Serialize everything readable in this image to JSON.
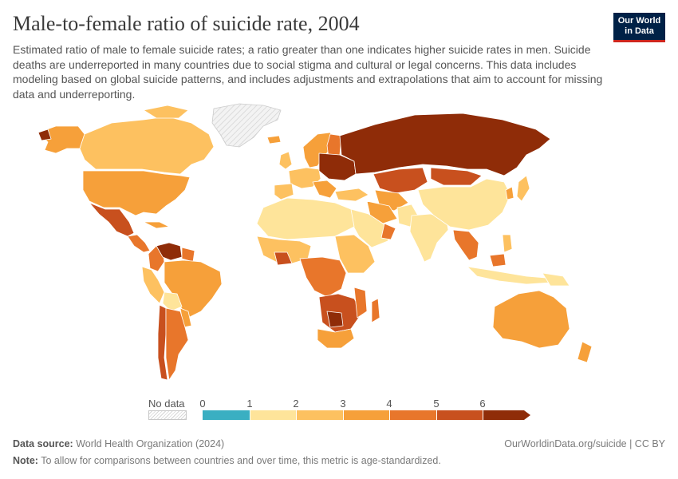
{
  "title": "Male-to-female ratio of suicide rate, 2004",
  "subtitle": "Estimated ratio of male to female suicide rates; a ratio greater than one indicates higher suicide rates in men. Suicide deaths are underreported in many countries due to social stigma and cultural or legal concerns. This data includes modeling based on global suicide patterns, and includes adjustments and extrapolations that aim to account for missing data and underreporting.",
  "logo": {
    "line1": "Our World",
    "line2": "in Data"
  },
  "legend": {
    "no_data_label": "No data",
    "ticks": [
      "0",
      "1",
      "2",
      "3",
      "4",
      "5",
      "6"
    ],
    "bins": [
      {
        "from": 0,
        "to": 1,
        "color": "#3aafc2"
      },
      {
        "from": 1,
        "to": 2,
        "color": "#fee49a"
      },
      {
        "from": 2,
        "to": 3,
        "color": "#fdc160"
      },
      {
        "from": 3,
        "to": 4,
        "color": "#f6a03a"
      },
      {
        "from": 4,
        "to": 5,
        "color": "#e8762b"
      },
      {
        "from": 5,
        "to": 6,
        "color": "#c8501e"
      },
      {
        "from": 6,
        "to": null,
        "color": "#8f2c08"
      }
    ]
  },
  "colors": {
    "no_data": "#e8e8e8",
    "ocean": "#ffffff",
    "border": "#ffffff"
  },
  "footer": {
    "source_label": "Data source:",
    "source_text": "World Health Organization (2024)",
    "note_label": "Note:",
    "note_text": "To allow for comparisons between countries and over time, this metric is age-standardized.",
    "url": "OurWorldinData.org/suicide | CC BY"
  }
}
